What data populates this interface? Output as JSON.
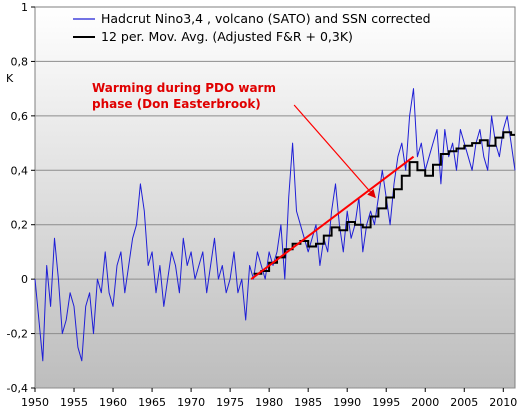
{
  "chart_data": {
    "type": "line",
    "ylabel": "K",
    "xlim": [
      1950,
      2011.5
    ],
    "ylim": [
      -0.4,
      1.0
    ],
    "x_ticks": [
      "1950",
      "1955",
      "1960",
      "1965",
      "1970",
      "1975",
      "1980",
      "1985",
      "1990",
      "1995",
      "2000",
      "2005",
      "2010"
    ],
    "y_ticks": [
      "1",
      "0,8",
      "0,6",
      "0,4",
      "0,2",
      "0",
      "-0,2",
      "-0,4"
    ],
    "grid": true,
    "legend_position": "top-left",
    "series": [
      {
        "name": "Hadcrut Nino3,4 , volcano (SATO) and SSN corrected",
        "color": "#1f1fd6",
        "x": [
          1950.0,
          1950.5,
          1951.0,
          1951.5,
          1952.0,
          1952.5,
          1953.0,
          1953.5,
          1954.0,
          1954.5,
          1955.0,
          1955.5,
          1956.0,
          1956.5,
          1957.0,
          1957.5,
          1958.0,
          1958.5,
          1959.0,
          1959.5,
          1960.0,
          1960.5,
          1961.0,
          1961.5,
          1962.0,
          1962.5,
          1963.0,
          1963.5,
          1964.0,
          1964.5,
          1965.0,
          1965.5,
          1966.0,
          1966.5,
          1967.0,
          1967.5,
          1968.0,
          1968.5,
          1969.0,
          1969.5,
          1970.0,
          1970.5,
          1971.0,
          1971.5,
          1972.0,
          1972.5,
          1973.0,
          1973.5,
          1974.0,
          1974.5,
          1975.0,
          1975.5,
          1976.0,
          1976.5,
          1977.0,
          1977.5,
          1978.0,
          1978.5,
          1979.0,
          1979.5,
          1980.0,
          1980.5,
          1981.0,
          1981.5,
          1982.0,
          1982.5,
          1983.0,
          1983.5,
          1984.0,
          1984.5,
          1985.0,
          1985.5,
          1986.0,
          1986.5,
          1987.0,
          1987.5,
          1988.0,
          1988.5,
          1989.0,
          1989.5,
          1990.0,
          1990.5,
          1991.0,
          1991.5,
          1992.0,
          1992.5,
          1993.0,
          1993.5,
          1994.0,
          1994.5,
          1995.0,
          1995.5,
          1996.0,
          1996.5,
          1997.0,
          1997.5,
          1998.0,
          1998.5,
          1999.0,
          1999.5,
          2000.0,
          2000.5,
          2001.0,
          2001.5,
          2002.0,
          2002.5,
          2003.0,
          2003.5,
          2004.0,
          2004.5,
          2005.0,
          2005.5,
          2006.0,
          2006.5,
          2007.0,
          2007.5,
          2008.0,
          2008.5,
          2009.0,
          2009.5,
          2010.0,
          2010.5,
          2011.0,
          2011.5
        ],
        "values": [
          0.0,
          -0.15,
          -0.3,
          0.05,
          -0.1,
          0.15,
          0.0,
          -0.2,
          -0.15,
          -0.05,
          -0.1,
          -0.25,
          -0.3,
          -0.1,
          -0.05,
          -0.2,
          0.0,
          -0.05,
          0.1,
          -0.05,
          -0.1,
          0.05,
          0.1,
          -0.05,
          0.05,
          0.15,
          0.2,
          0.35,
          0.25,
          0.05,
          0.1,
          -0.05,
          0.05,
          -0.1,
          0.0,
          0.1,
          0.05,
          -0.05,
          0.15,
          0.05,
          0.1,
          0.0,
          0.05,
          0.1,
          -0.05,
          0.05,
          0.15,
          0.0,
          0.05,
          -0.05,
          0.0,
          0.1,
          -0.05,
          0.0,
          -0.15,
          0.05,
          0.0,
          0.1,
          0.05,
          0.0,
          0.1,
          0.05,
          0.1,
          0.2,
          0.0,
          0.3,
          0.5,
          0.25,
          0.2,
          0.15,
          0.1,
          0.15,
          0.2,
          0.05,
          0.15,
          0.1,
          0.25,
          0.35,
          0.2,
          0.1,
          0.25,
          0.15,
          0.2,
          0.3,
          0.1,
          0.2,
          0.25,
          0.2,
          0.3,
          0.4,
          0.3,
          0.2,
          0.35,
          0.45,
          0.5,
          0.4,
          0.6,
          0.7,
          0.45,
          0.5,
          0.4,
          0.45,
          0.5,
          0.55,
          0.35,
          0.55,
          0.45,
          0.5,
          0.4,
          0.55,
          0.5,
          0.45,
          0.4,
          0.5,
          0.55,
          0.45,
          0.4,
          0.6,
          0.5,
          0.45,
          0.55,
          0.6,
          0.5,
          0.4
        ]
      },
      {
        "name": "12 per. Mov. Avg. (Adjusted F&R + 0,3K)",
        "color": "#000000",
        "x": [
          1978.0,
          1979.0,
          1980.0,
          1981.0,
          1982.0,
          1983.0,
          1984.0,
          1985.0,
          1986.0,
          1987.0,
          1988.0,
          1989.0,
          1990.0,
          1991.0,
          1992.0,
          1993.0,
          1994.0,
          1995.0,
          1996.0,
          1997.0,
          1998.0,
          1999.0,
          2000.0,
          2001.0,
          2002.0,
          2003.0,
          2004.0,
          2005.0,
          2006.0,
          2007.0,
          2008.0,
          2009.0,
          2010.0,
          2011.0
        ],
        "values": [
          0.02,
          0.03,
          0.06,
          0.08,
          0.11,
          0.13,
          0.14,
          0.12,
          0.13,
          0.16,
          0.19,
          0.18,
          0.21,
          0.2,
          0.19,
          0.23,
          0.26,
          0.3,
          0.33,
          0.38,
          0.43,
          0.4,
          0.38,
          0.42,
          0.46,
          0.47,
          0.48,
          0.49,
          0.5,
          0.51,
          0.49,
          0.52,
          0.54,
          0.53
        ]
      }
    ],
    "annotations": [
      {
        "text_lines": [
          "Warming during PDO warm",
          "phase (Don Easterbrook)"
        ],
        "color": "#ff0000"
      }
    ],
    "trend_line": {
      "x": [
        1977.7,
        1998.5
      ],
      "values": [
        0.0,
        0.45
      ],
      "color": "#ff0000"
    },
    "arrow": {
      "from_year": 1983.2,
      "from_value": 0.64,
      "to_year": 1993.6,
      "to_value": 0.3,
      "color": "#ff0000"
    }
  }
}
